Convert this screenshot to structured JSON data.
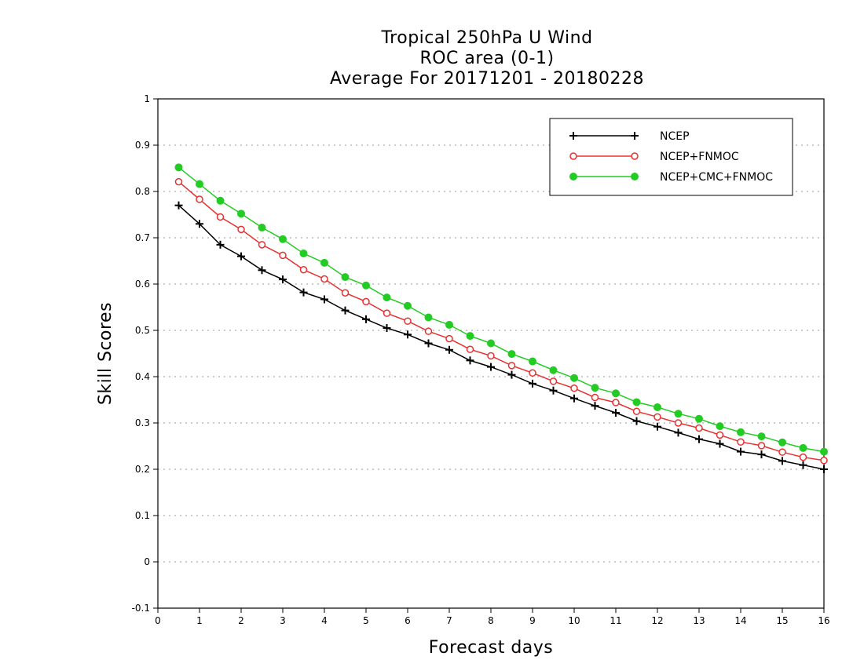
{
  "chart_data": {
    "type": "line",
    "title_lines": [
      "Tropical 250hPa U Wind",
      "ROC area (0-1)",
      "Average For 20171201 - 20180228"
    ],
    "xlabel": "Forecast days",
    "ylabel": "Skill Scores",
    "xlim": [
      0,
      16
    ],
    "ylim": [
      -0.1,
      1
    ],
    "xticks": [
      0,
      1,
      2,
      3,
      4,
      5,
      6,
      7,
      8,
      9,
      10,
      11,
      12,
      13,
      14,
      15,
      16
    ],
    "yticks": [
      -0.1,
      0,
      0.1,
      0.2,
      0.3,
      0.4,
      0.5,
      0.6,
      0.7,
      0.8,
      0.9,
      1
    ],
    "ytick_labels": [
      "-0.1",
      "0",
      "0.1",
      "0.2",
      "0.3",
      "0.4",
      "0.5",
      "0.6",
      "0.7",
      "0.8",
      "0.9",
      "1"
    ],
    "grid": true,
    "legend_position": "top-right",
    "x": [
      0.5,
      1,
      1.5,
      2,
      2.5,
      3,
      3.5,
      4,
      4.5,
      5,
      5.5,
      6,
      6.5,
      7,
      7.5,
      8,
      8.5,
      9,
      9.5,
      10,
      10.5,
      11,
      11.5,
      12,
      12.5,
      13,
      13.5,
      14,
      14.5,
      15,
      15.5,
      16
    ],
    "series": [
      {
        "name": "NCEP",
        "color": "#000000",
        "marker": "plus",
        "values": [
          0.77,
          0.73,
          0.685,
          0.66,
          0.63,
          0.61,
          0.582,
          0.567,
          0.543,
          0.524,
          0.505,
          0.491,
          0.472,
          0.458,
          0.435,
          0.421,
          0.404,
          0.385,
          0.37,
          0.353,
          0.337,
          0.322,
          0.304,
          0.292,
          0.279,
          0.265,
          0.255,
          0.238,
          0.232,
          0.218,
          0.209,
          0.2
        ]
      },
      {
        "name": "NCEP+FNMOC",
        "color": "#e83030",
        "marker": "open-circle",
        "values": [
          0.821,
          0.783,
          0.745,
          0.718,
          0.685,
          0.662,
          0.631,
          0.611,
          0.581,
          0.562,
          0.537,
          0.52,
          0.498,
          0.482,
          0.459,
          0.445,
          0.424,
          0.408,
          0.39,
          0.375,
          0.355,
          0.344,
          0.325,
          0.313,
          0.3,
          0.289,
          0.274,
          0.259,
          0.251,
          0.237,
          0.226,
          0.219
        ]
      },
      {
        "name": "NCEP+CMC+FNMOC",
        "color": "#22cc22",
        "marker": "filled-circle",
        "values": [
          0.852,
          0.816,
          0.78,
          0.752,
          0.722,
          0.697,
          0.666,
          0.646,
          0.615,
          0.597,
          0.571,
          0.553,
          0.528,
          0.512,
          0.488,
          0.472,
          0.449,
          0.433,
          0.414,
          0.397,
          0.376,
          0.364,
          0.345,
          0.334,
          0.32,
          0.309,
          0.293,
          0.28,
          0.271,
          0.258,
          0.246,
          0.238
        ]
      }
    ]
  }
}
